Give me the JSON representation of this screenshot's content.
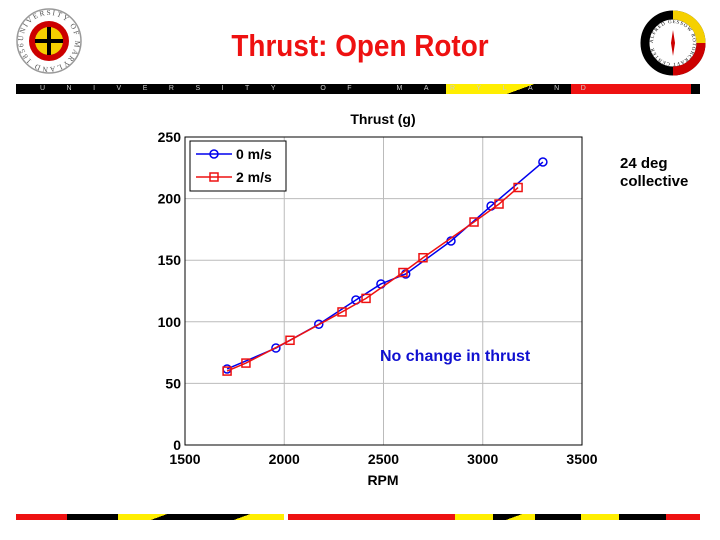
{
  "slide": {
    "title": "Thrust: Open Rotor",
    "banner_text": "UNIVERSITY OF MARYLAND",
    "left_logo_text": "UNIVERSITY OF MARYLAND 1856",
    "right_logo_text": "ALFRED GESSOW ROTORCRAFT CENTER",
    "side_note_line1": "24 deg",
    "side_note_line2": "collective",
    "annotation": "No change in thrust",
    "colors": {
      "title": "#ee1111",
      "annotation": "#1010d0",
      "md_red": "#ee1111",
      "md_yellow": "#ffee00",
      "md_black": "#000000"
    }
  },
  "chart_data": {
    "type": "line",
    "title": "Thrust (g)",
    "xlabel": "RPM",
    "ylabel": "",
    "xlim": [
      1500,
      3500
    ],
    "ylim": [
      0,
      250
    ],
    "xticks": [
      "1500",
      "2000",
      "2500",
      "3000",
      "3500"
    ],
    "yticks": [
      "0",
      "50",
      "100",
      "150",
      "200",
      "250"
    ],
    "grid": true,
    "legend_placement": "top-left",
    "series": [
      {
        "name": "0 m/s",
        "color": "#0000ee",
        "marker": "circle",
        "x": [
          1712,
          1958,
          2174,
          2361,
          2487,
          2612,
          2840,
          3042,
          3303
        ],
        "y": [
          61.7,
          78.7,
          98,
          117.7,
          130.7,
          138.8,
          165.6,
          194,
          229.7
        ]
      },
      {
        "name": "2 m/s",
        "color": "#ee1111",
        "marker": "square",
        "x": [
          1712,
          1807,
          2029,
          2291,
          2412,
          2598,
          2699,
          2956,
          3082,
          3178
        ],
        "y": [
          60,
          66.5,
          85,
          108,
          119,
          140,
          152,
          181,
          195.6,
          209
        ]
      }
    ]
  }
}
